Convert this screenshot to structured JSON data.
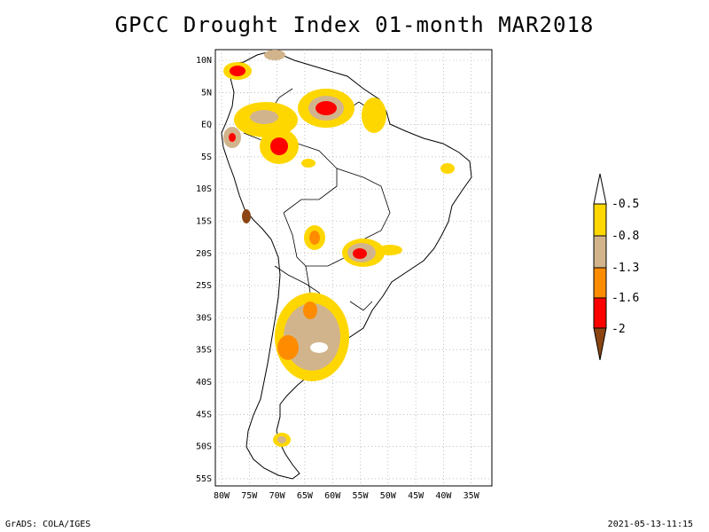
{
  "title": "GPCC Drought Index 01-month MAR2018",
  "footer": {
    "left": "GrADS: COLA/IGES",
    "right": "2021-05-13-11:15"
  },
  "map": {
    "lat_labels": [
      "10N",
      "5N",
      "EQ",
      "5S",
      "10S",
      "15S",
      "20S",
      "25S",
      "30S",
      "35S",
      "40S",
      "45S",
      "50S",
      "55S"
    ],
    "lon_labels": [
      "80W",
      "75W",
      "70W",
      "65W",
      "60W",
      "55W",
      "50W",
      "45W",
      "40W",
      "35W"
    ],
    "lat_range": [
      12,
      -56
    ],
    "lon_range": [
      -81,
      -32
    ],
    "region": "South America",
    "gridlines": true
  },
  "legend": {
    "labels": [
      "-0.5",
      "-0.8",
      "-1.3",
      "-1.6",
      "-2"
    ],
    "colors": [
      "#ffffff",
      "#ffd700",
      "#d2b48c",
      "#ff8c00",
      "#ff0000",
      "#8b4513"
    ]
  }
}
